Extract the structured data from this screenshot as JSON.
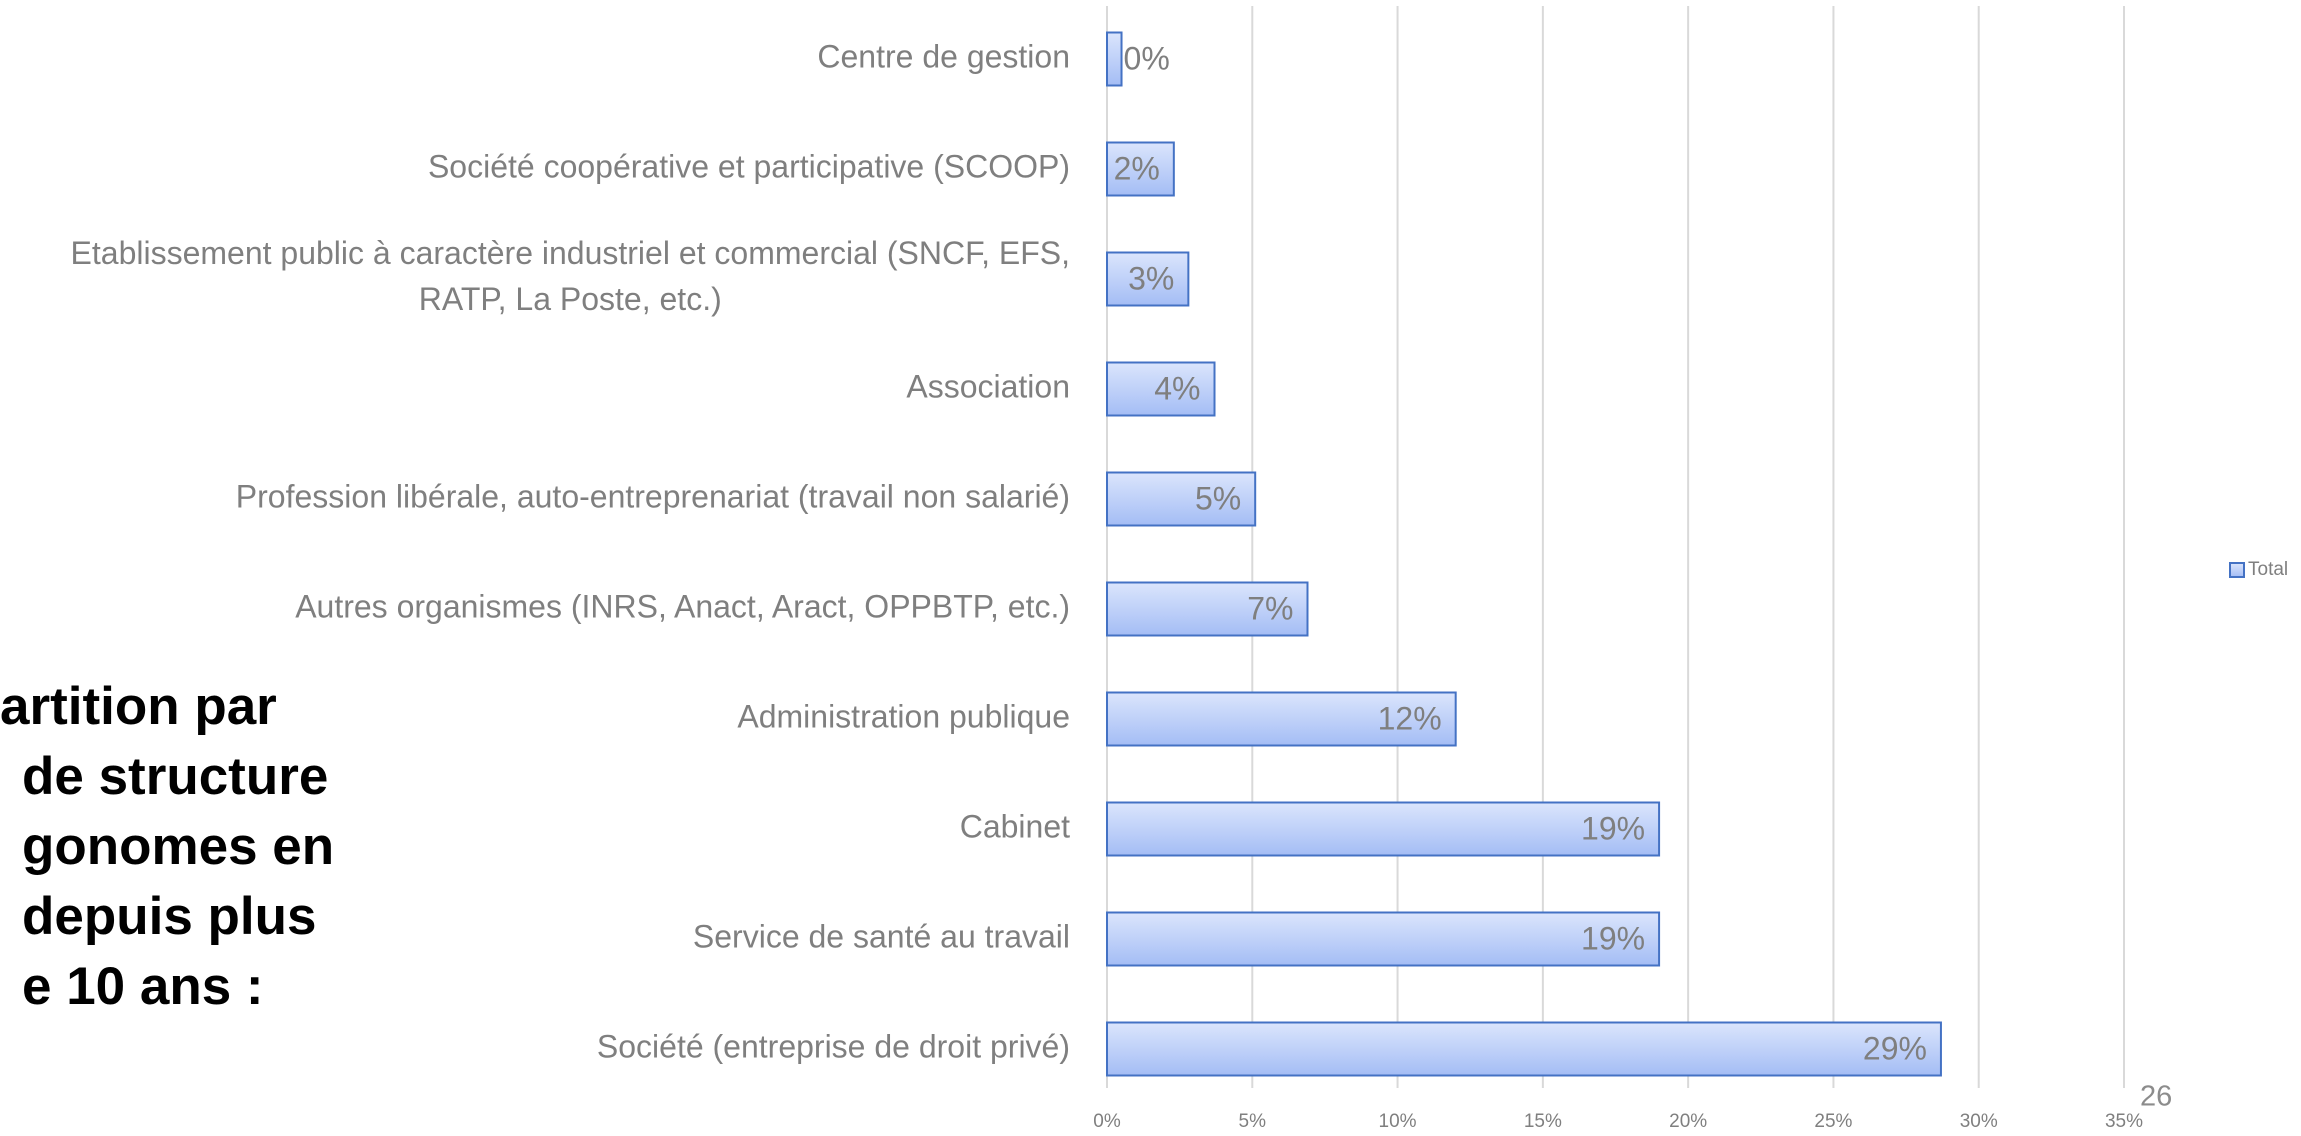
{
  "chart_data": {
    "type": "barh",
    "title_lines": [
      "artition par",
      "de structure",
      "gonomes en",
      "depuis plus",
      "e 10 ans :"
    ],
    "categories": [
      "Centre de gestion",
      "Société coopérative et participative (SCOOP)",
      "Etablissement public à caractère industriel et commercial (SNCF, EFS,\nRATP, La Poste, etc.)",
      "Association",
      "Profession libérale, auto-entreprenariat (travail non salarié)",
      "Autres organismes (INRS, Anact, Aract, OPPBTP, etc.)",
      "Administration publique",
      "Cabinet",
      "Service de santé au travail",
      "Société (entreprise de droit privé)"
    ],
    "series": [
      {
        "name": "Total",
        "color": "#b4c7f7",
        "values": [
          0.5,
          2.3,
          2.8,
          3.7,
          5.1,
          6.9,
          12,
          19,
          19,
          28.7
        ],
        "value_labels": [
          "0%",
          "2%",
          "3%",
          "4%",
          "5%",
          "7%",
          "12%",
          "19%",
          "19%",
          "29%"
        ]
      }
    ],
    "xlim": [
      0,
      35
    ],
    "xticks": [
      {
        "value": 0,
        "label": "0%"
      },
      {
        "value": 5,
        "label": "5%"
      },
      {
        "value": 10,
        "label": "10%"
      },
      {
        "value": 15,
        "label": "15%"
      },
      {
        "value": 20,
        "label": "20%"
      },
      {
        "value": 25,
        "label": "25%"
      },
      {
        "value": 30,
        "label": "30%"
      },
      {
        "value": 35,
        "label": "35%"
      }
    ],
    "grid": true,
    "legend": "right",
    "page_number": "26"
  }
}
